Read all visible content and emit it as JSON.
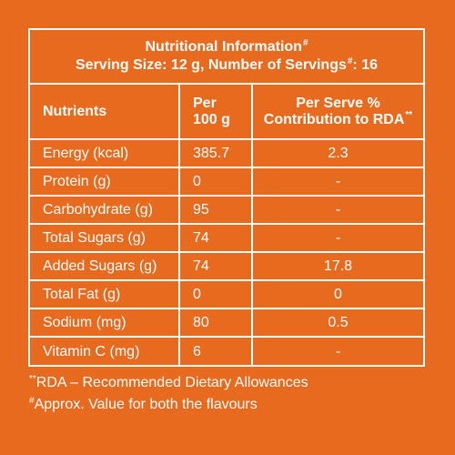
{
  "header": {
    "title": "Nutritional Information",
    "title_mark": "#",
    "serving_prefix": "Serving Size: 12 g, Number of Servings",
    "serving_mark": "#",
    "serving_suffix": ": 16"
  },
  "table": {
    "columns": {
      "nutrients": "Nutrients",
      "per_100g_line1": "Per",
      "per_100g_line2": "100 g",
      "rda_line1": "Per Serve %",
      "rda_line2": "Contribution to RDA",
      "rda_mark": "**"
    },
    "rows": [
      {
        "nutrient": "Energy (kcal)",
        "per_100g": "385.7",
        "rda": "2.3"
      },
      {
        "nutrient": "Protein (g)",
        "per_100g": "0",
        "rda": "-"
      },
      {
        "nutrient": "Carbohydrate (g)",
        "per_100g": "95",
        "rda": "-"
      },
      {
        "nutrient": "Total Sugars (g)",
        "per_100g": "74",
        "rda": "-"
      },
      {
        "nutrient": "Added Sugars (g)",
        "per_100g": "74",
        "rda": "17.8"
      },
      {
        "nutrient": "Total Fat (g)",
        "per_100g": "0",
        "rda": "0"
      },
      {
        "nutrient": "Sodium (mg)",
        "per_100g": "80",
        "rda": "0.5"
      },
      {
        "nutrient": "Vitamin C (mg)",
        "per_100g": "6",
        "rda": "-"
      }
    ]
  },
  "footnotes": {
    "rda_mark": "**",
    "rda_text": "RDA – Recommended Dietary Allowances",
    "approx_mark": "#",
    "approx_text": "Approx. Value for both the flavours"
  },
  "colors": {
    "background": "#e86a1f",
    "text": "#ffffff"
  }
}
